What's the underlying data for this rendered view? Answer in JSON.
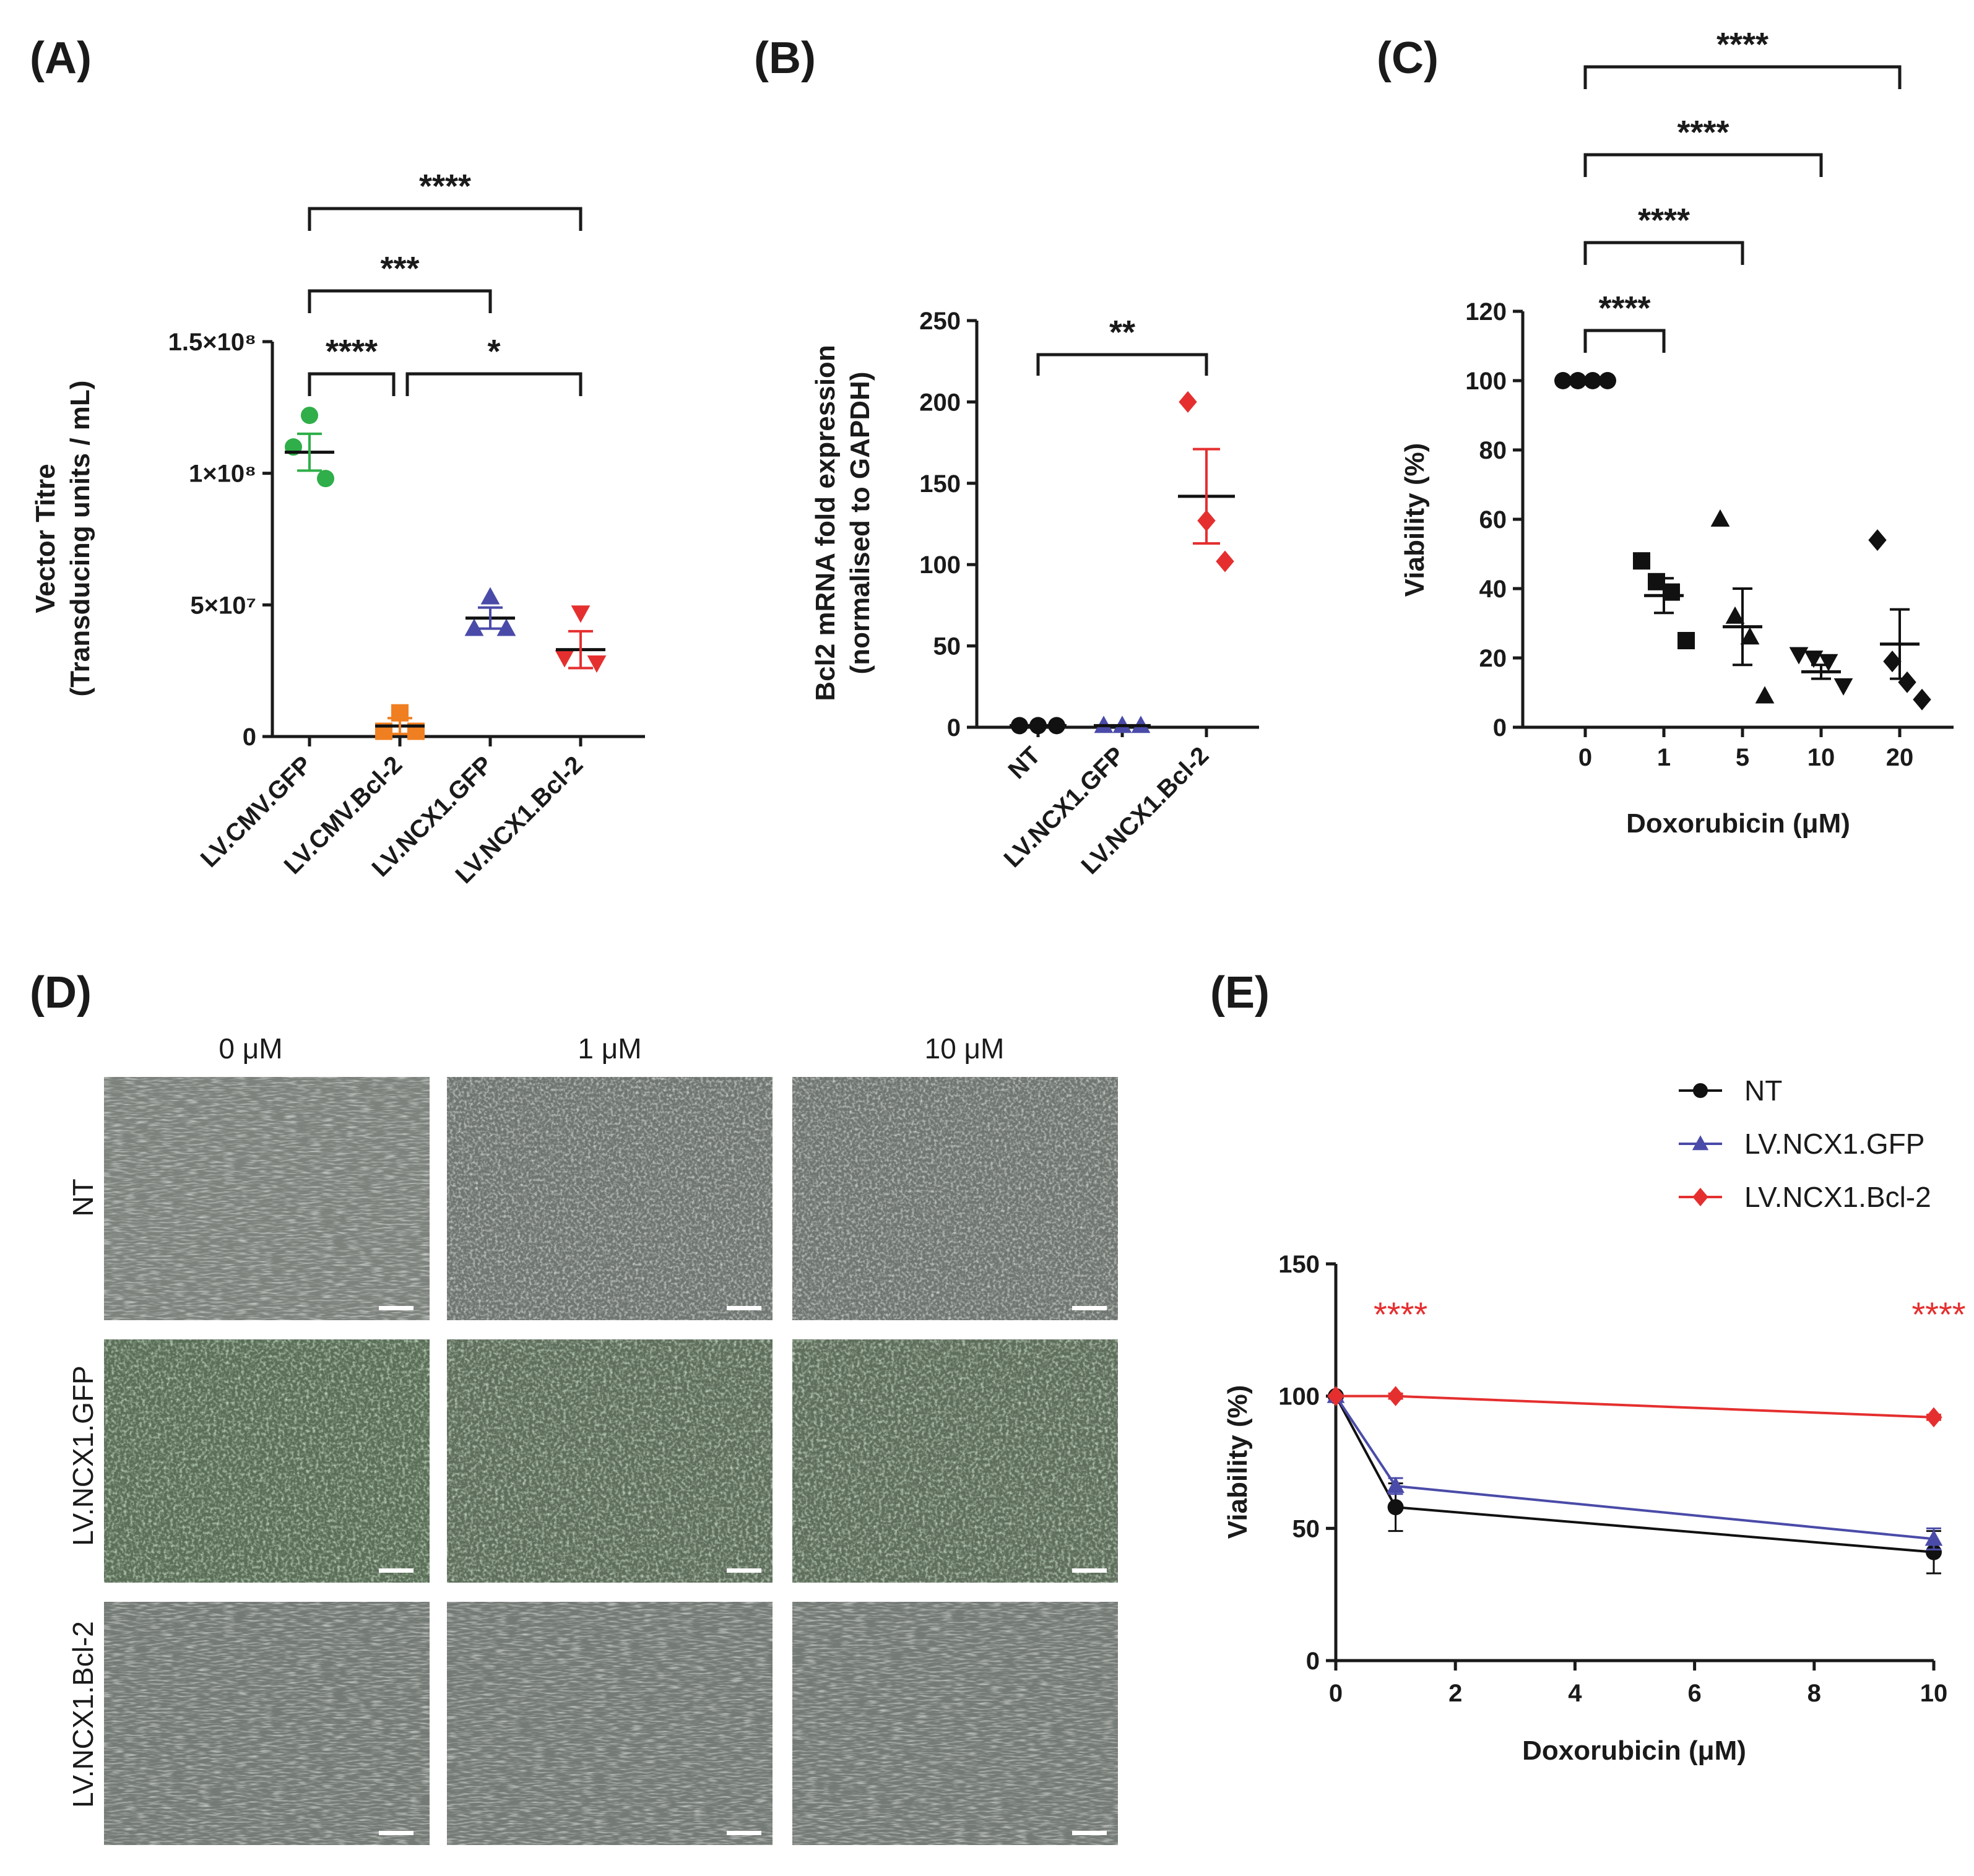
{
  "panels": {
    "A": {
      "label": "(A)"
    },
    "B": {
      "label": "(B)"
    },
    "C": {
      "label": "(C)"
    },
    "D": {
      "label": "(D)"
    },
    "E": {
      "label": "(E)"
    }
  },
  "chart_data": [
    {
      "id": "A",
      "type": "scatter",
      "title": "",
      "ylabel_line1": "Vector Titre",
      "ylabel_line2": "(Transducing units / mL)",
      "xlabel": "",
      "ylim": [
        0,
        150000000
      ],
      "yticks": [
        {
          "v": 0,
          "label": "0"
        },
        {
          "v": 50000000,
          "label": "5×10⁷"
        },
        {
          "v": 100000000,
          "label": "1×10⁸"
        },
        {
          "v": 150000000,
          "label": "1.5×10⁸"
        }
      ],
      "categories": [
        "LV.CMV.GFP",
        "LV.CMV.Bcl-2",
        "LV.NCX1.GFP",
        "LV.NCX1.Bcl-2"
      ],
      "series": [
        {
          "name": "LV.CMV.GFP",
          "color": "#2fae49",
          "marker": "circle",
          "points": [
            122000000,
            110000000,
            98000000
          ],
          "mean": 108000000,
          "sem": 7000000
        },
        {
          "name": "LV.CMV.Bcl-2",
          "color": "#f07f21",
          "marker": "square",
          "points": [
            9000000,
            2000000,
            2000000
          ],
          "mean": 4000000,
          "sem": 3000000
        },
        {
          "name": "LV.NCX1.GFP",
          "color": "#4a4ba8",
          "marker": "triangle-up",
          "points": [
            53000000,
            41000000,
            41000000
          ],
          "mean": 45000000,
          "sem": 4000000
        },
        {
          "name": "LV.NCX1.Bcl-2",
          "color": "#e52f2f",
          "marker": "triangle-down",
          "points": [
            47000000,
            30000000,
            28000000
          ],
          "mean": 33000000,
          "sem": 7000000
        }
      ],
      "significance": [
        {
          "from": 0,
          "to": 3,
          "label": "****"
        },
        {
          "from": 0,
          "to": 2,
          "label": "***"
        },
        {
          "from": 0,
          "to": 1,
          "label": "****"
        },
        {
          "from": 1,
          "to": 3,
          "label": "*"
        }
      ]
    },
    {
      "id": "B",
      "type": "scatter",
      "ylabel_line1": "Bcl2 mRNA fold expression",
      "ylabel_line2": "(normalised to GAPDH)",
      "xlabel": "",
      "ylim": [
        0,
        250
      ],
      "yticks": [
        {
          "v": 0,
          "label": "0"
        },
        {
          "v": 50,
          "label": "50"
        },
        {
          "v": 100,
          "label": "100"
        },
        {
          "v": 150,
          "label": "150"
        },
        {
          "v": 200,
          "label": "200"
        },
        {
          "v": 250,
          "label": "250"
        }
      ],
      "categories": [
        "NT",
        "LV.NCX1.GFP",
        "LV.NCX1.Bcl-2"
      ],
      "series": [
        {
          "name": "NT",
          "color": "#111111",
          "marker": "circle",
          "points": [
            1,
            1,
            1
          ],
          "mean": 1,
          "sem": 0
        },
        {
          "name": "LV.NCX1.GFP",
          "color": "#4a4ba8",
          "marker": "triangle-up",
          "points": [
            1,
            1,
            1
          ],
          "mean": 1,
          "sem": 0
        },
        {
          "name": "LV.NCX1.Bcl-2",
          "color": "#e52f2f",
          "marker": "diamond",
          "points": [
            200,
            127,
            102
          ],
          "mean": 142,
          "sem": 29
        }
      ],
      "significance": [
        {
          "from": 0,
          "to": 2,
          "label": "**"
        }
      ]
    },
    {
      "id": "C",
      "type": "scatter",
      "ylabel": "Viability (%)",
      "xlabel": "Doxorubicin (μM)",
      "ylim": [
        0,
        120
      ],
      "yticks": [
        {
          "v": 0,
          "label": "0"
        },
        {
          "v": 20,
          "label": "20"
        },
        {
          "v": 40,
          "label": "40"
        },
        {
          "v": 60,
          "label": "60"
        },
        {
          "v": 80,
          "label": "80"
        },
        {
          "v": 100,
          "label": "100"
        },
        {
          "v": 120,
          "label": "120"
        }
      ],
      "categories": [
        "0",
        "1",
        "5",
        "10",
        "20"
      ],
      "series": [
        {
          "name": "0",
          "color": "#111111",
          "marker": "circle",
          "points": [
            100,
            100,
            100,
            100
          ],
          "mean": 100,
          "sem": 0
        },
        {
          "name": "1",
          "color": "#111111",
          "marker": "square",
          "points": [
            48,
            42,
            39,
            25
          ],
          "mean": 38,
          "sem": 5
        },
        {
          "name": "5",
          "color": "#111111",
          "marker": "triangle-up",
          "points": [
            60,
            32,
            26,
            9
          ],
          "mean": 29,
          "sem": 11
        },
        {
          "name": "10",
          "color": "#111111",
          "marker": "triangle-down",
          "points": [
            21,
            20,
            19,
            12
          ],
          "mean": 16,
          "sem": 2
        },
        {
          "name": "20",
          "color": "#111111",
          "marker": "diamond",
          "points": [
            54,
            19,
            13,
            8
          ],
          "mean": 24,
          "sem": 10
        }
      ],
      "significance": [
        {
          "from": 0,
          "to": 4,
          "label": "****"
        },
        {
          "from": 0,
          "to": 3,
          "label": "****"
        },
        {
          "from": 0,
          "to": 2,
          "label": "****"
        },
        {
          "from": 0,
          "to": 1,
          "label": "****"
        }
      ]
    },
    {
      "id": "E",
      "type": "line",
      "ylabel": "Viability  (%)",
      "xlabel": "Doxorubicin (μM)",
      "xlim": [
        0,
        10
      ],
      "ylim": [
        0,
        150
      ],
      "xticks": [
        {
          "v": 0,
          "label": "0"
        },
        {
          "v": 2,
          "label": "2"
        },
        {
          "v": 4,
          "label": "4"
        },
        {
          "v": 6,
          "label": "6"
        },
        {
          "v": 8,
          "label": "8"
        },
        {
          "v": 10,
          "label": "10"
        }
      ],
      "yticks": [
        {
          "v": 0,
          "label": "0"
        },
        {
          "v": 50,
          "label": "50"
        },
        {
          "v": 100,
          "label": "100"
        },
        {
          "v": 150,
          "label": "150"
        }
      ],
      "series": [
        {
          "name": "NT",
          "color": "#111111",
          "marker": "circle",
          "x": [
            0,
            1,
            10
          ],
          "y": [
            100,
            58,
            41
          ],
          "err": [
            0,
            9,
            8
          ]
        },
        {
          "name": "LV.NCX1.GFP",
          "color": "#4a4ba8",
          "marker": "triangle-up",
          "x": [
            0,
            1,
            10
          ],
          "y": [
            100,
            66,
            46
          ],
          "err": [
            0,
            3,
            4
          ]
        },
        {
          "name": "LV.NCX1.Bcl-2",
          "color": "#e52f2f",
          "marker": "diamond",
          "x": [
            0,
            1,
            10
          ],
          "y": [
            100,
            100,
            92
          ],
          "err": [
            0,
            1,
            1
          ]
        }
      ],
      "annotations": [
        {
          "x": 1,
          "label": "****",
          "color": "#e52f2f"
        },
        {
          "x": 10,
          "label": "****",
          "color": "#e52f2f"
        }
      ],
      "legend": [
        "NT",
        "LV.NCX1.GFP",
        "LV.NCX1.Bcl-2"
      ]
    }
  ],
  "micrographs": {
    "columns": [
      "0 μM",
      "1 μM",
      "10 μM"
    ],
    "rows": [
      "NT",
      "LV.NCX1.GFP",
      "LV.NCX1.Bcl-2"
    ]
  }
}
